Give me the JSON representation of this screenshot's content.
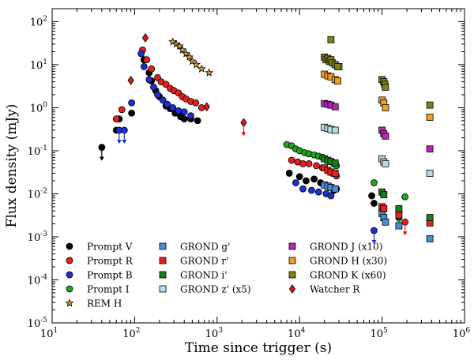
{
  "chart_data": {
    "type": "scatter",
    "xlabel": "Time since trigger (s)",
    "ylabel": "Flux density (mJy)",
    "x_scale": "log",
    "y_scale": "log",
    "xlim": [
      10,
      1000000
    ],
    "ylim": [
      1e-05,
      200
    ],
    "x_ticks": [
      {
        "value": 10,
        "base": "10",
        "exp": "1"
      },
      {
        "value": 100,
        "base": "10",
        "exp": "2"
      },
      {
        "value": 1000,
        "base": "10",
        "exp": "3"
      },
      {
        "value": 10000,
        "base": "10",
        "exp": "4"
      },
      {
        "value": 100000,
        "base": "10",
        "exp": "5"
      },
      {
        "value": 1000000,
        "base": "10",
        "exp": "6"
      }
    ],
    "y_ticks": [
      {
        "value": 1e-05,
        "base": "10",
        "exp": "-5"
      },
      {
        "value": 0.0001,
        "base": "10",
        "exp": "-4"
      },
      {
        "value": 0.001,
        "base": "10",
        "exp": "-3"
      },
      {
        "value": 0.01,
        "base": "10",
        "exp": "-2"
      },
      {
        "value": 0.1,
        "base": "10",
        "exp": "-1"
      },
      {
        "value": 1,
        "base": "10",
        "exp": "0"
      },
      {
        "value": 10,
        "base": "10",
        "exp": "1"
      },
      {
        "value": 100,
        "base": "10",
        "exp": "2"
      }
    ],
    "legend_position": "bottom",
    "series": [
      {
        "name": "Prompt V",
        "marker": "circle",
        "color": "#000000",
        "points": [
          [
            40,
            0.12
          ],
          [
            60,
            0.3
          ],
          [
            65,
            0.55
          ],
          [
            92,
            0.75
          ],
          [
            130,
            13
          ],
          [
            150,
            6.5
          ],
          [
            160,
            4.2
          ],
          [
            180,
            2.5
          ],
          [
            200,
            1.8
          ],
          [
            240,
            1.1
          ],
          [
            270,
            0.95
          ],
          [
            310,
            0.75
          ],
          [
            360,
            0.62
          ],
          [
            400,
            0.55
          ],
          [
            480,
            0.55
          ],
          [
            580,
            0.5
          ],
          [
            7500,
            0.03
          ],
          [
            10000,
            0.025
          ],
          [
            12000,
            0.02
          ],
          [
            15000,
            0.022
          ],
          [
            18000,
            0.018
          ],
          [
            21000,
            0.016
          ],
          [
            23000,
            0.015
          ],
          [
            26000,
            0.012
          ],
          [
            28000,
            0.013
          ],
          [
            75000,
            0.009
          ],
          [
            80000,
            0.006
          ],
          [
            160000,
            0.0028
          ]
        ],
        "upper_limits": [
          [
            40,
            0.12
          ]
        ]
      },
      {
        "name": "Prompt R",
        "marker": "circle",
        "color": "#e8201c",
        "points": [
          [
            60,
            0.55
          ],
          [
            70,
            0.9
          ],
          [
            125,
            22
          ],
          [
            140,
            13
          ],
          [
            160,
            8
          ],
          [
            190,
            5
          ],
          [
            210,
            4
          ],
          [
            240,
            3.5
          ],
          [
            270,
            2.8
          ],
          [
            300,
            2.5
          ],
          [
            340,
            2.2
          ],
          [
            380,
            1.8
          ],
          [
            420,
            1.6
          ],
          [
            480,
            1.4
          ],
          [
            550,
            1.3
          ],
          [
            650,
            1.0
          ],
          [
            8000,
            0.06
          ],
          [
            9500,
            0.055
          ],
          [
            11000,
            0.05
          ],
          [
            13000,
            0.05
          ],
          [
            16000,
            0.045
          ],
          [
            19000,
            0.04
          ],
          [
            22000,
            0.035
          ],
          [
            25000,
            0.03
          ],
          [
            28000,
            0.026
          ],
          [
            190000,
            0.0022
          ]
        ],
        "upper_limits": [
          [
            190000,
            0.0022
          ]
        ]
      },
      {
        "name": "Prompt B",
        "marker": "circle",
        "color": "#1c2fd4",
        "points": [
          [
            65,
            0.3
          ],
          [
            75,
            0.3
          ],
          [
            92,
            1.3
          ],
          [
            120,
            18
          ],
          [
            130,
            9
          ],
          [
            150,
            4.5
          ],
          [
            170,
            3
          ],
          [
            190,
            2
          ],
          [
            220,
            1.5
          ],
          [
            250,
            1.2
          ],
          [
            290,
            1.0
          ],
          [
            340,
            0.85
          ],
          [
            400,
            0.8
          ],
          [
            480,
            0.65
          ],
          [
            9000,
            0.018
          ],
          [
            11000,
            0.013
          ],
          [
            14000,
            0.012
          ],
          [
            17000,
            0.011
          ],
          [
            21000,
            0.01
          ],
          [
            24000,
            0.009
          ],
          [
            80000,
            0.0014
          ]
        ],
        "upper_limits": [
          [
            65,
            0.3
          ],
          [
            75,
            0.3
          ],
          [
            80000,
            0.0014
          ]
        ]
      },
      {
        "name": "Prompt I",
        "marker": "circle",
        "color": "#22a31f",
        "points": [
          [
            7000,
            0.14
          ],
          [
            8000,
            0.13
          ],
          [
            9000,
            0.11
          ],
          [
            10000,
            0.1
          ],
          [
            11500,
            0.09
          ],
          [
            13000,
            0.085
          ],
          [
            15000,
            0.08
          ],
          [
            17000,
            0.075
          ],
          [
            19000,
            0.07
          ],
          [
            21000,
            0.063
          ],
          [
            23000,
            0.058
          ],
          [
            26000,
            0.05
          ],
          [
            28000,
            0.045
          ],
          [
            80000,
            0.018
          ],
          [
            105000,
            0.01
          ],
          [
            160000,
            0.004
          ],
          [
            190000,
            0.0085
          ]
        ],
        "upper_limits": [
          [
            160000,
            0.004
          ]
        ]
      },
      {
        "name": "REM H",
        "marker": "star",
        "color": "#d8a032",
        "points": [
          [
            290,
            34
          ],
          [
            320,
            30
          ],
          [
            350,
            27
          ],
          [
            380,
            22
          ],
          [
            420,
            18
          ],
          [
            460,
            15
          ],
          [
            500,
            12
          ],
          [
            560,
            10
          ],
          [
            650,
            8
          ],
          [
            800,
            6.5
          ]
        ],
        "upper_limits": []
      },
      {
        "name": "GROND g'",
        "marker": "square",
        "color": "#4a8fd6",
        "points": [
          [
            20000,
            0.016
          ],
          [
            22000,
            0.015
          ],
          [
            24000,
            0.014
          ],
          [
            27000,
            0.013
          ],
          [
            100000,
            0.0035
          ],
          [
            105000,
            0.0028
          ],
          [
            110000,
            0.0022
          ],
          [
            160000,
            0.0018
          ],
          [
            380000,
            0.0009
          ]
        ],
        "upper_limits": []
      },
      {
        "name": "GROND r'",
        "marker": "square",
        "color": "#e8201c",
        "points": [
          [
            20000,
            0.04
          ],
          [
            22000,
            0.035
          ],
          [
            24000,
            0.032
          ],
          [
            27000,
            0.03
          ],
          [
            100000,
            0.005
          ],
          [
            105000,
            0.0045
          ],
          [
            160000,
            0.0032
          ],
          [
            380000,
            0.0021
          ]
        ],
        "upper_limits": []
      },
      {
        "name": "GROND i'",
        "marker": "square",
        "color": "#1a7f1a",
        "points": [
          [
            20000,
            0.065
          ],
          [
            22000,
            0.06
          ],
          [
            24000,
            0.056
          ],
          [
            27000,
            0.052
          ],
          [
            100000,
            0.011
          ],
          [
            105000,
            0.0095
          ],
          [
            160000,
            0.0045
          ],
          [
            380000,
            0.0028
          ]
        ],
        "upper_limits": []
      },
      {
        "name": "GROND z' (x5)",
        "marker": "square",
        "color": "#b7dde8",
        "points": [
          [
            20000,
            0.35
          ],
          [
            22000,
            0.33
          ],
          [
            24000,
            0.31
          ],
          [
            27000,
            0.3
          ],
          [
            100000,
            0.065
          ],
          [
            105000,
            0.055
          ],
          [
            110000,
            0.05
          ],
          [
            380000,
            0.03
          ]
        ],
        "upper_limits": []
      },
      {
        "name": "GROND J (x10)",
        "marker": "square",
        "color": "#b627b6",
        "points": [
          [
            20000,
            1.25
          ],
          [
            22000,
            1.2
          ],
          [
            24000,
            1.15
          ],
          [
            27000,
            1.05
          ],
          [
            100000,
            0.3
          ],
          [
            105000,
            0.25
          ],
          [
            110000,
            0.22
          ],
          [
            380000,
            0.11
          ]
        ],
        "upper_limits": []
      },
      {
        "name": "GROND H (x30)",
        "marker": "square",
        "color": "#f0a020",
        "points": [
          [
            20000,
            6
          ],
          [
            22000,
            5.5
          ],
          [
            24000,
            5.2
          ],
          [
            27000,
            4.5
          ],
          [
            29000,
            4.2
          ],
          [
            30000,
            9
          ],
          [
            100000,
            1.5
          ],
          [
            105000,
            1.3
          ],
          [
            110000,
            1.0
          ],
          [
            380000,
            0.6
          ]
        ],
        "upper_limits": []
      },
      {
        "name": "GROND K (x60)",
        "marker": "square",
        "color": "#80801a",
        "points": [
          [
            20000,
            15
          ],
          [
            21000,
            13
          ],
          [
            22000,
            14
          ],
          [
            23000,
            12
          ],
          [
            24000,
            13
          ],
          [
            25000,
            11
          ],
          [
            27000,
            10
          ],
          [
            29000,
            9
          ],
          [
            24000,
            38
          ],
          [
            100000,
            4.5
          ],
          [
            105000,
            4.0
          ],
          [
            108000,
            3.5
          ],
          [
            110000,
            3.0
          ],
          [
            380000,
            1.15
          ]
        ],
        "upper_limits": []
      },
      {
        "name": "Watcher R",
        "marker": "diamond",
        "color": "#d41818",
        "points": [
          [
            90,
            4.3
          ],
          [
            135,
            42
          ],
          [
            750,
            1.05
          ],
          [
            2100,
            0.45
          ]
        ],
        "upper_limits": [
          [
            2100,
            0.45
          ]
        ]
      }
    ]
  }
}
